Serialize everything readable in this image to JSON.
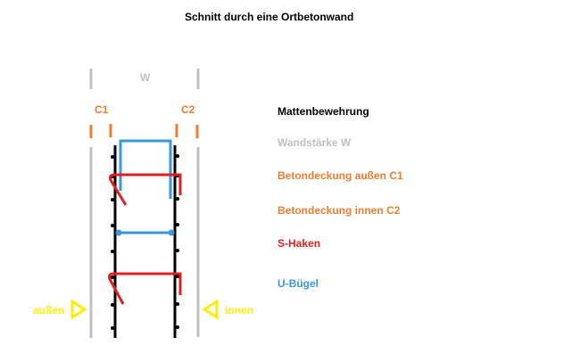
{
  "title": "Schnitt durch eine Ortbetonwand",
  "labels": {
    "w": "W",
    "c1": "C1",
    "c2": "C2",
    "aussen": "außen",
    "innen": "innen"
  },
  "legend": {
    "heading": "Mattenbewehrung",
    "items": [
      {
        "label": "Wandstärke W",
        "color": "#c0c0c0"
      },
      {
        "label": "Betondeckung außen C1",
        "color": "#ed7d31"
      },
      {
        "label": "Betondeckung innen C2",
        "color": "#ed7d31"
      },
      {
        "label": "S-Haken",
        "color": "#e02020"
      },
      {
        "label": "U-Bügel",
        "color": "#3a96dd"
      }
    ]
  },
  "colors": {
    "wall": "#c0c0c0",
    "cover": "#ed7d31",
    "rebar": "#000000",
    "s_hook": "#e02020",
    "u_stirrup": "#3a96dd",
    "side_marker": "#ffee00"
  }
}
